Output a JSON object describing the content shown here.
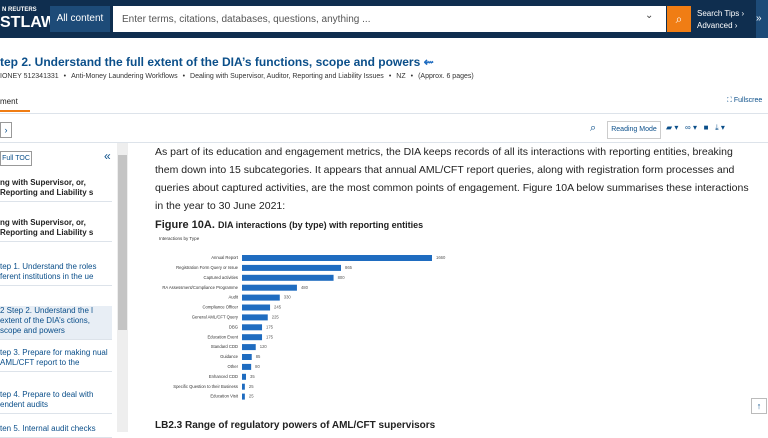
{
  "header": {
    "logo_top": "N REUTERS",
    "logo_bottom": "STLAW",
    "scope": "All content",
    "search_placeholder": "Enter terms, citations, databases, questions, anything ...",
    "search_tips": "Search Tips ›",
    "advanced": "Advanced ›"
  },
  "document": {
    "title": "tep 2. Understand the full extent of the DIA’s functions, scope and powers",
    "breadcrumb": [
      "IONEY 512341331",
      "Anti-Money Laundering Workflows",
      "Dealing with Supervisor, Auditor, Reporting and Liability Issues",
      "NZ",
      "(Approx. 6 pages)"
    ],
    "tab": "ment",
    "fullscreen": "Fullscree",
    "reading_mode": "Reading Mode"
  },
  "toc": {
    "full_toc": "Full TOC",
    "items": [
      "ng with Supervisor, or, Reporting and Liability s",
      "ng with Supervisor, or, Reporting and Liability s",
      "tep 1. Understand the roles ferent institutions in the ue",
      "2 Step 2. Understand the l extent of the DIA’s ctions, scope and powers",
      "tep 3. Prepare for making nual AML/CFT report to the",
      "tep 4. Prepare to deal with endent audits",
      "ten 5. Internal audit checks"
    ]
  },
  "body": {
    "paragraph": "As part of its education and engagement metrics, the DIA keeps records of all its interactions with reporting entities, breaking them down into 15 subcategories. It appears that annual AML/CFT report queries, along with registration form processes and queries about captured activities, are the most common points of engagement. Figure 10A below summarises these interactions in the year to 30 June 2021:",
    "figure_label": "Figure 10A.",
    "next_heading": "LB2.3  Range of regulatory powers of AML/CFT supervisors"
  },
  "chart_data": {
    "type": "bar",
    "orientation": "horizontal",
    "title": "DIA interactions (by type) with reporting entities",
    "subtitle": "Interactions by Type",
    "categories": [
      "Annual Report",
      "Registration Form Query or Issue",
      "Captured activities",
      "RA Assessment/Compliance Programme",
      "Audit",
      "Compliance Officer",
      "General AML/CFT Query",
      "DBG",
      "Education Event",
      "Standard CDD",
      "Guidance",
      "Other",
      "Enhanced CDD",
      "Specific Question to their Business",
      "Education Visit"
    ],
    "values": [
      1660,
      865,
      800,
      480,
      330,
      245,
      225,
      175,
      175,
      120,
      85,
      80,
      35,
      25,
      25
    ],
    "color": "#1f6cc0"
  }
}
